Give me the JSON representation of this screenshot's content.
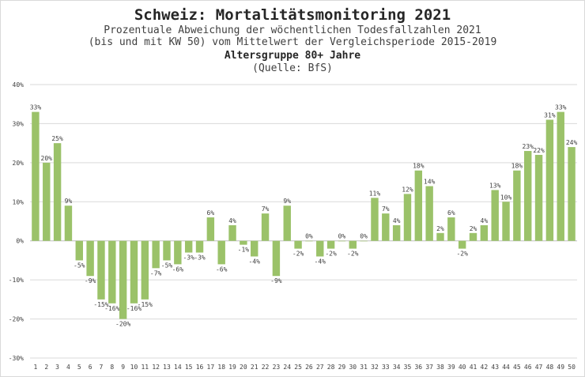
{
  "chart_data": {
    "type": "bar",
    "title": "Schweiz: Mortalitätsmonitoring 2021",
    "subtitle_lines": [
      "Prozentuale Abweichung der wöchentlichen Todesfallzahlen 2021",
      "(bis und mit KW 50) vom Mittelwert der Vergleichsperiode 2015-2019",
      "Altersgruppe 80+ Jahre",
      "(Quelle: BfS)"
    ],
    "xlabel": "",
    "ylabel": "",
    "ylim": [
      -30,
      40
    ],
    "yticks": [
      40,
      30,
      20,
      10,
      0,
      -10,
      -20,
      -30
    ],
    "ytick_labels": [
      "40%",
      "30%",
      "20%",
      "10%",
      "0%",
      "-10%",
      "-20%",
      "-30%"
    ],
    "categories": [
      "1",
      "2",
      "3",
      "4",
      "5",
      "6",
      "7",
      "8",
      "9",
      "10",
      "11",
      "12",
      "13",
      "14",
      "15",
      "16",
      "17",
      "18",
      "19",
      "20",
      "21",
      "22",
      "23",
      "24",
      "25",
      "26",
      "27",
      "28",
      "29",
      "30",
      "31",
      "32",
      "33",
      "34",
      "35",
      "36",
      "37",
      "38",
      "39",
      "40",
      "41",
      "42",
      "43",
      "44",
      "45",
      "46",
      "47",
      "48",
      "49",
      "50"
    ],
    "values": [
      33,
      20,
      25,
      9,
      -5,
      -9,
      -15,
      -16,
      -20,
      -16,
      -15,
      -7,
      -5,
      -6,
      -3,
      -3,
      6,
      -6,
      4,
      -1,
      -4,
      7,
      -9,
      9,
      -2,
      0,
      -4,
      -2,
      0,
      -2,
      0,
      11,
      7,
      4,
      12,
      18,
      14,
      2,
      6,
      -2,
      2,
      4,
      13,
      10,
      18,
      23,
      22,
      31,
      33,
      24
    ],
    "labels": [
      "33%",
      "20%",
      "25%",
      "9%",
      "-5%",
      "-9%",
      "-15%",
      "-16%",
      "-20%",
      "-16%",
      "-15%",
      "-7%",
      "-5%",
      "-6%",
      "-3%",
      "-3%",
      "6%",
      "-6%",
      "4%",
      "-1%",
      "-4%",
      "7%",
      "-9%",
      "9%",
      "-2%",
      "0%",
      "-4%",
      "-2%",
      "0%",
      "-2%",
      "0%",
      "11%",
      "7%",
      "4%",
      "12%",
      "18%",
      "14%",
      "2%",
      "6%",
      "-2%",
      "2%",
      "4%",
      "13%",
      "10%",
      "18%",
      "23%",
      "22%",
      "31%",
      "33%",
      "24%"
    ],
    "bar_color": "#9bc269",
    "grid": true,
    "grid_color": "#d9d9d9",
    "legend": "none"
  }
}
